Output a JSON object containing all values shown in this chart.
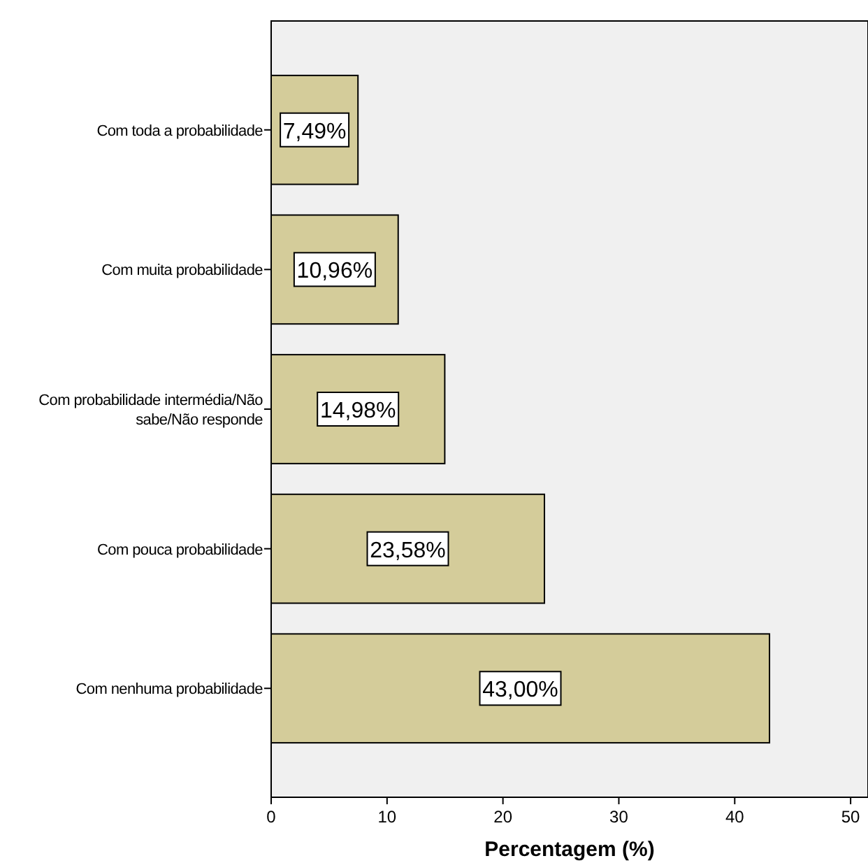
{
  "chart_data": {
    "type": "bar",
    "orientation": "horizontal",
    "xlabel": "Percentagem (%)",
    "categories": [
      "Com toda a probabilidade",
      "Com muita probabilidade",
      "Com probabilidade intermédia/Não sabe/Não responde",
      "Com pouca probabilidade",
      "Com nenhuma probabilidade"
    ],
    "values": [
      7.49,
      10.96,
      14.98,
      23.58,
      43.0
    ],
    "value_labels": [
      "7,49%",
      "10,96%",
      "14,98%",
      "23,58%",
      "43,00%"
    ],
    "color": "#d4cc9a",
    "xlim": [
      0,
      51.5
    ],
    "xticks": [
      0,
      10,
      20,
      30,
      40,
      50
    ],
    "grid": false
  }
}
